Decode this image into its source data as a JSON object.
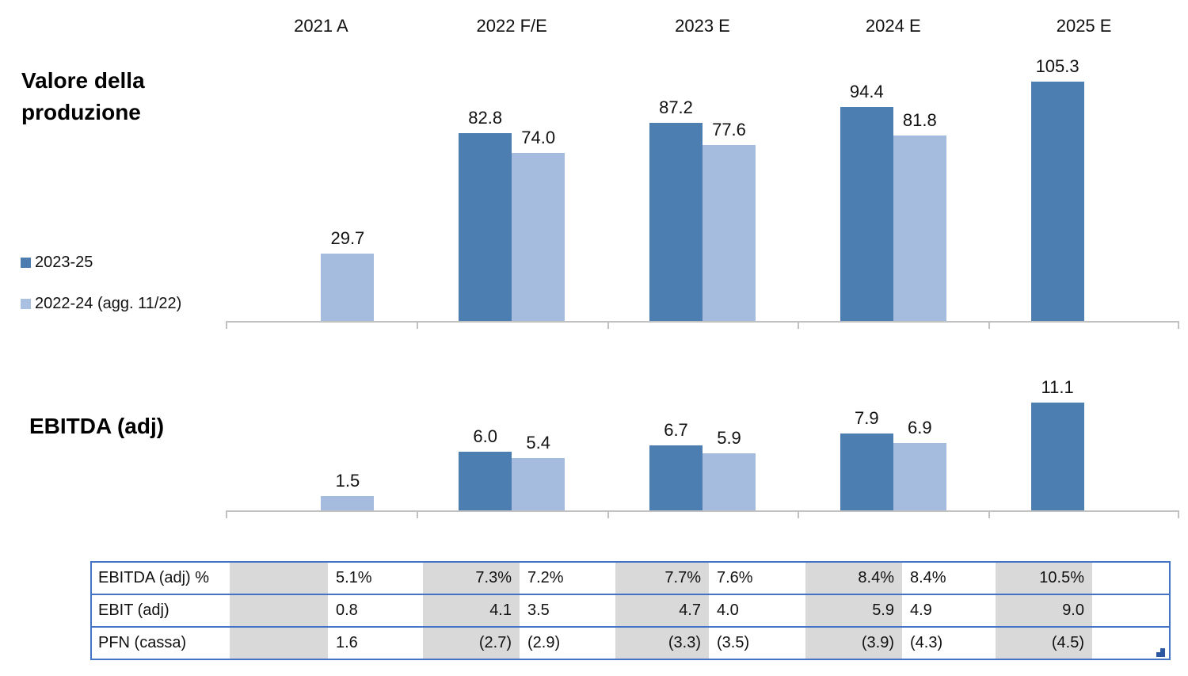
{
  "slide": {
    "background": "#ffffff"
  },
  "columns": {
    "years": [
      "2021 A",
      "2022 F/E",
      "2023 E",
      "2024 E",
      "2025 E"
    ]
  },
  "legend": {
    "items": [
      {
        "label": "2023-25",
        "color": "#4d7cb0"
      },
      {
        "label": "2022-24 (agg. 11/22)",
        "color": "#a9c0e0"
      }
    ]
  },
  "colors": {
    "series_dark": "#4d7eb2",
    "series_light": "#a6bcde",
    "axis": "#c1c1c1",
    "table_border": "#4472c4",
    "table_shaded": "#d9d9d9",
    "fill_handle": "#2d56a0"
  },
  "chart_data": [
    {
      "type": "bar",
      "title": "Valore della produzione",
      "categories": [
        "2021 A",
        "2022 F/E",
        "2023 E",
        "2024 E",
        "2025 E"
      ],
      "series": [
        {
          "name": "2023-25",
          "color": "#4d7eb2",
          "values": [
            null,
            82.8,
            87.2,
            94.4,
            105.3
          ],
          "labels": [
            "",
            "82.8",
            "87.2",
            "94.4",
            "105.3"
          ]
        },
        {
          "name": "2022-24 (agg. 11/22)",
          "color": "#a6bcde",
          "values": [
            29.7,
            74.0,
            77.6,
            81.8,
            null
          ],
          "labels": [
            "29.7",
            "74.0",
            "77.6",
            "81.8",
            ""
          ]
        }
      ],
      "ylim": [
        0,
        110
      ],
      "grid": false,
      "value_labels": true,
      "legend_position": "left"
    },
    {
      "type": "bar",
      "title": "EBITDA (adj)",
      "categories": [
        "2021 A",
        "2022 F/E",
        "2023 E",
        "2024 E",
        "2025 E"
      ],
      "series": [
        {
          "name": "2023-25",
          "color": "#4d7eb2",
          "values": [
            null,
            6.0,
            6.7,
            7.9,
            11.1
          ],
          "labels": [
            "",
            "6.0",
            "6.7",
            "7.9",
            "11.1"
          ]
        },
        {
          "name": "2022-24 (agg. 11/22)",
          "color": "#a6bcde",
          "values": [
            1.5,
            5.4,
            5.9,
            6.9,
            null
          ],
          "labels": [
            "1.5",
            "5.4",
            "5.9",
            "6.9",
            ""
          ]
        }
      ],
      "ylim": [
        0,
        12.3
      ],
      "grid": false,
      "value_labels": true,
      "legend_position": "left"
    },
    {
      "type": "table",
      "rows": [
        {
          "label": "EBITDA (adj) %",
          "cells": [
            "",
            "5.1%",
            "7.3%",
            "7.2%",
            "7.7%",
            "7.6%",
            "8.4%",
            "8.4%",
            "10.5%",
            ""
          ]
        },
        {
          "label": "EBIT (adj)",
          "cells": [
            "",
            "0.8",
            "4.1",
            "3.5",
            "4.7",
            "4.0",
            "5.9",
            "4.9",
            "9.0",
            ""
          ]
        },
        {
          "label": "PFN (cassa)",
          "cells": [
            "",
            "1.6",
            "(2.7)",
            "(2.9)",
            "(3.3)",
            "(3.5)",
            "(3.9)",
            "(4.3)",
            "(4.5)",
            ""
          ]
        }
      ]
    }
  ]
}
